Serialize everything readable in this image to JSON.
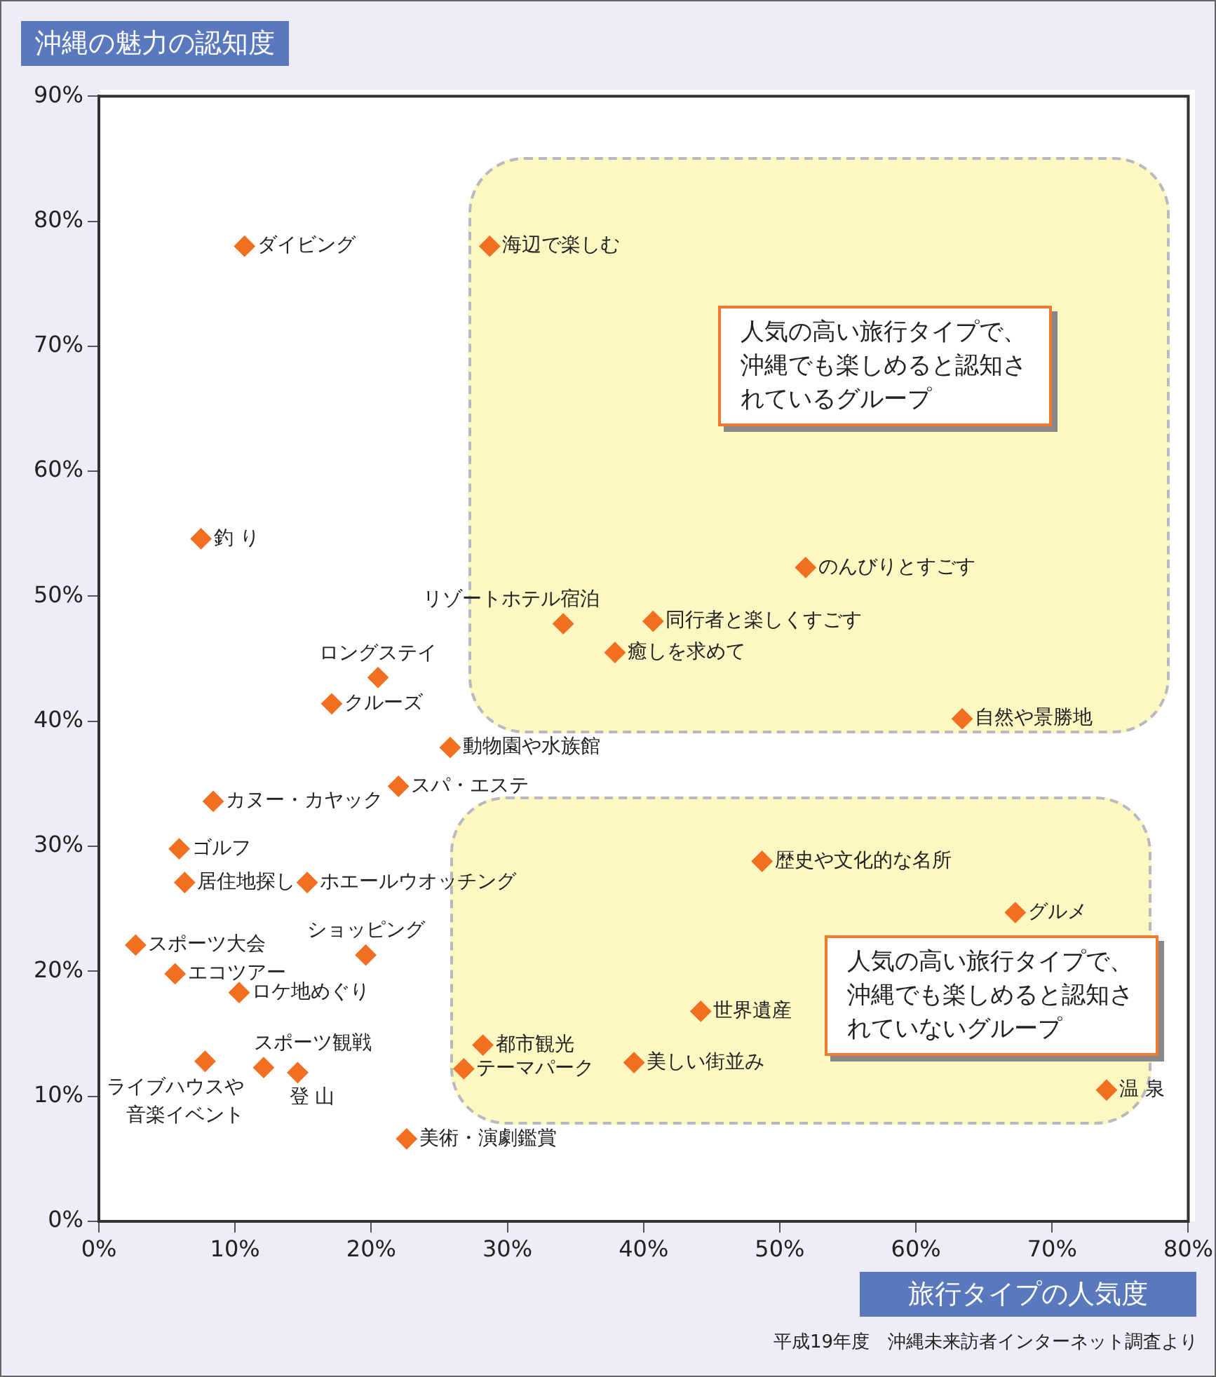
{
  "chart_data": {
    "type": "scatter",
    "xlabel": "旅行タイプの人気度",
    "ylabel": "沖縄の魅力の認知度",
    "annotations": [
      "人気の高い旅行タイプで、沖縄でも楽しめると認知されているグループ",
      "人気の高い旅行タイプで、沖縄でも楽しめると認知されていないグループ",
      "平成19年度　沖縄未来訪者インターネット調査より"
    ],
    "xlim": [
      0,
      80
    ],
    "ylim": [
      0,
      90
    ],
    "xticks": [
      {
        "value": 0,
        "label": "0%"
      },
      {
        "value": 10,
        "label": "10%"
      },
      {
        "value": 20,
        "label": "20%"
      },
      {
        "value": 30,
        "label": "30%"
      },
      {
        "value": 40,
        "label": "40%"
      },
      {
        "value": 50,
        "label": "50%"
      },
      {
        "value": 60,
        "label": "60%"
      },
      {
        "value": 70,
        "label": "70%"
      },
      {
        "value": 80,
        "label": "80%"
      }
    ],
    "yticks": [
      {
        "value": 0,
        "label": "0%"
      },
      {
        "value": 10,
        "label": "10%"
      },
      {
        "value": 20,
        "label": "20%"
      },
      {
        "value": 30,
        "label": "30%"
      },
      {
        "value": 40,
        "label": "40%"
      },
      {
        "value": 50,
        "label": "50%"
      },
      {
        "value": 60,
        "label": "60%"
      },
      {
        "value": 70,
        "label": "70%"
      },
      {
        "value": 80,
        "label": "80%"
      },
      {
        "value": 90,
        "label": "90%"
      }
    ],
    "marker": "diamond",
    "grid": false,
    "series": [
      {
        "name": "ダイビング",
        "color": "#f26f21",
        "x": [
          10.7
        ],
        "values": [
          78
        ]
      },
      {
        "name": "海辺で楽しむ",
        "color": "#f26f21",
        "x": [
          28.7
        ],
        "values": [
          78
        ]
      },
      {
        "name": "釣 り",
        "color": "#f26f21",
        "x": [
          7.5
        ],
        "values": [
          54.6
        ]
      },
      {
        "name": "リゾートホテル宿泊",
        "color": "#f26f21",
        "x": [
          34.1
        ],
        "values": [
          47.8
        ]
      },
      {
        "name": "のんびりとすごす",
        "color": "#f26f21",
        "x": [
          51.9
        ],
        "values": [
          52.3
        ]
      },
      {
        "name": "同行者と楽しくすごす",
        "color": "#f26f21",
        "x": [
          40.7
        ],
        "values": [
          48
        ]
      },
      {
        "name": "癒しを求めて",
        "color": "#f26f21",
        "x": [
          37.9
        ],
        "values": [
          45.5
        ]
      },
      {
        "name": "ロングステイ",
        "color": "#f26f21",
        "x": [
          20.5
        ],
        "values": [
          43.5
        ]
      },
      {
        "name": "クルーズ",
        "color": "#f26f21",
        "x": [
          17.1
        ],
        "values": [
          41.4
        ]
      },
      {
        "name": "自然や景勝地",
        "color": "#f26f21",
        "x": [
          63.4
        ],
        "values": [
          40.2
        ]
      },
      {
        "name": "動物園や水族館",
        "color": "#f26f21",
        "x": [
          25.8
        ],
        "values": [
          37.9
        ]
      },
      {
        "name": "スパ・エステ",
        "color": "#f26f21",
        "x": [
          22
        ],
        "values": [
          34.8
        ]
      },
      {
        "name": "カヌー・カヤック",
        "color": "#f26f21",
        "x": [
          8.4
        ],
        "values": [
          33.6
        ]
      },
      {
        "name": "ゴルフ",
        "color": "#f26f21",
        "x": [
          5.9
        ],
        "values": [
          29.8
        ]
      },
      {
        "name": "居住地探し",
        "color": "#f26f21",
        "x": [
          6.3
        ],
        "values": [
          27.1
        ]
      },
      {
        "name": "ホエールウオッチング",
        "color": "#f26f21",
        "x": [
          15.3
        ],
        "values": [
          27.1
        ]
      },
      {
        "name": "歴史や文化的な名所",
        "color": "#f26f21",
        "x": [
          48.7
        ],
        "values": [
          28.8
        ]
      },
      {
        "name": "グルメ",
        "color": "#f26f21",
        "x": [
          67.3
        ],
        "values": [
          24.7
        ]
      },
      {
        "name": "スポーツ大会",
        "color": "#f26f21",
        "x": [
          2.7
        ],
        "values": [
          22.1
        ]
      },
      {
        "name": "ショッピング",
        "color": "#f26f21",
        "x": [
          19.6
        ],
        "values": [
          21.3
        ]
      },
      {
        "name": "エコツアー",
        "color": "#f26f21",
        "x": [
          5.6
        ],
        "values": [
          19.8
        ]
      },
      {
        "name": "ロケ地めぐり",
        "color": "#f26f21",
        "x": [
          10.3
        ],
        "values": [
          18.3
        ]
      },
      {
        "name": "世界遺産",
        "color": "#f26f21",
        "x": [
          44.2
        ],
        "values": [
          16.8
        ]
      },
      {
        "name": "都市観光",
        "color": "#f26f21",
        "x": [
          28.2
        ],
        "values": [
          14.1
        ]
      },
      {
        "name": "ライブハウスや音楽イベント",
        "color": "#f26f21",
        "x": [
          7.8
        ],
        "values": [
          12.8
        ]
      },
      {
        "name": "テーマパーク",
        "color": "#f26f21",
        "x": [
          26.8
        ],
        "values": [
          12.2
        ]
      },
      {
        "name": "美しい街並み",
        "color": "#f26f21",
        "x": [
          39.3
        ],
        "values": [
          12.7
        ]
      },
      {
        "name": "スポーツ観戦",
        "color": "#f26f21",
        "x": [
          12.1
        ],
        "values": [
          12.3
        ]
      },
      {
        "name": "登 山",
        "color": "#f26f21",
        "x": [
          14.6
        ],
        "values": [
          11.9
        ]
      },
      {
        "name": "温 泉",
        "color": "#f26f21",
        "x": [
          74
        ],
        "values": [
          10.5
        ]
      },
      {
        "name": "美術・演劇鑑賞",
        "color": "#f26f21",
        "x": [
          22.6
        ],
        "values": [
          6.6
        ]
      }
    ]
  }
}
